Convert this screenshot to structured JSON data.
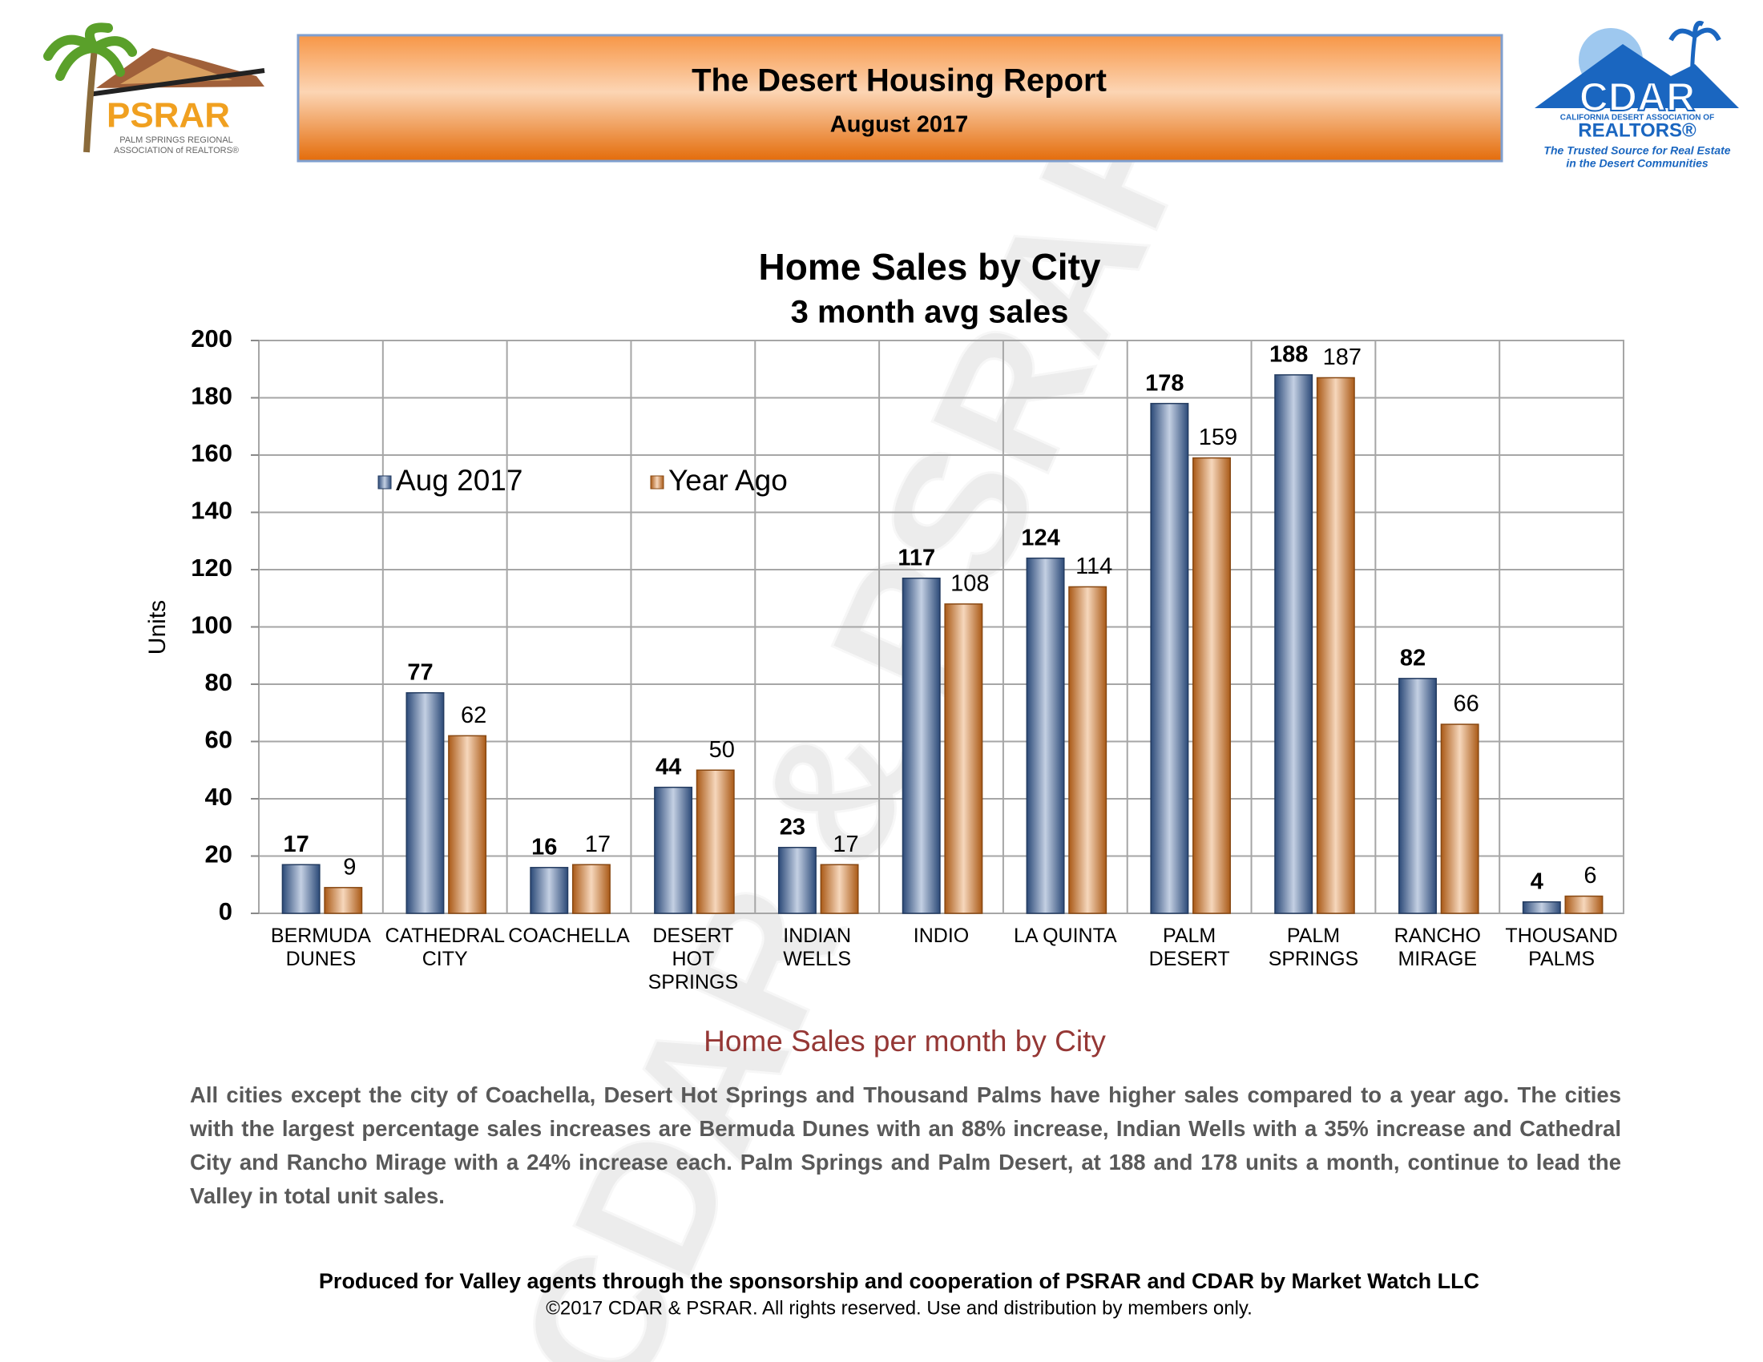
{
  "header": {
    "title": "The Desert Housing Report",
    "subtitle": "August 2017"
  },
  "logos": {
    "left": {
      "name": "PSRAR",
      "line1": "PALM SPRINGS REGIONAL",
      "line2": "ASSOCIATION of REALTORS®"
    },
    "right": {
      "name": "CDAR",
      "line1": "CALIFORNIA DESERT ASSOCIATION OF",
      "line2": "REALTORS®",
      "tagline1": "The Trusted Source for Real Estate",
      "tagline2": "in the Desert Communities"
    }
  },
  "watermark": "CDAR & PSRAR",
  "chart_data": {
    "type": "bar",
    "title": "Home Sales by City",
    "subtitle": "3 month avg sales",
    "y_label": "Units",
    "categories": [
      "BERMUDA\nDUNES",
      "CATHEDRAL\nCITY",
      "COACHELLA",
      "DESERT\nHOT\nSPRINGS",
      "INDIAN\nWELLS",
      "INDIO",
      "LA QUINTA",
      "PALM\nDESERT",
      "PALM\nSPRINGS",
      "RANCHO\nMIRAGE",
      "THOUSAND\nPALMS"
    ],
    "series": [
      {
        "name": "Aug 2017",
        "color": "#3a62a0",
        "values": [
          17,
          77,
          16,
          44,
          23,
          117,
          124,
          178,
          188,
          82,
          4
        ]
      },
      {
        "name": "Year Ago",
        "color": "#e2781e",
        "values": [
          9,
          62,
          17,
          50,
          17,
          108,
          114,
          159,
          187,
          66,
          6
        ]
      }
    ],
    "ylim": [
      0,
      200
    ],
    "yticks": [
      0,
      20,
      40,
      60,
      80,
      100,
      120,
      140,
      160,
      180,
      200
    ],
    "grid": true,
    "legend": "top-left"
  },
  "caption": "Home Sales per month by City",
  "body": "All cities except the city of Coachella, Desert Hot Springs and Thousand Palms have higher sales compared to a year ago. The cities with the largest percentage sales increases are Bermuda Dunes with an 88% increase, Indian Wells with a 35% increase and Cathedral City and Rancho Mirage with a 24% increase each. Palm Springs and Palm Desert, at 188 and 178 units a month, continue to lead the Valley in total unit sales.",
  "footer": {
    "credit": "Produced for Valley agents through the sponsorship and cooperation of PSRAR and CDAR by Market Watch LLC",
    "copyright": "©2017 CDAR & PSRAR.  All rights reserved.  Use and distribution by members only."
  }
}
